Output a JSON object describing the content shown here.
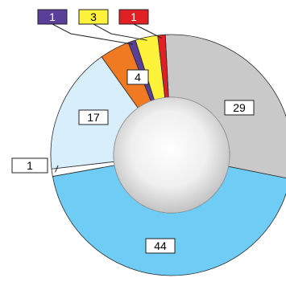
{
  "chart_data": {
    "type": "pie",
    "style": "donut",
    "title": "",
    "slices": [
      {
        "label": "29",
        "value": 29,
        "color": "#c9c9c9"
      },
      {
        "label": "44",
        "value": 44,
        "color": "#6fcdf5"
      },
      {
        "label": "1",
        "value": 1,
        "color": "#ffffff"
      },
      {
        "label": "17",
        "value": 17,
        "color": "#d8eefb"
      },
      {
        "label": "4",
        "value": 4,
        "color": "#f07a22"
      },
      {
        "label": "1",
        "value": 1,
        "color": "#5a3f99"
      },
      {
        "label": "3",
        "value": 3,
        "color": "#fff23a"
      },
      {
        "label": "1",
        "value": 1,
        "color": "#e31f26"
      }
    ],
    "center_color": "#e2e2e2",
    "legend": "none"
  }
}
